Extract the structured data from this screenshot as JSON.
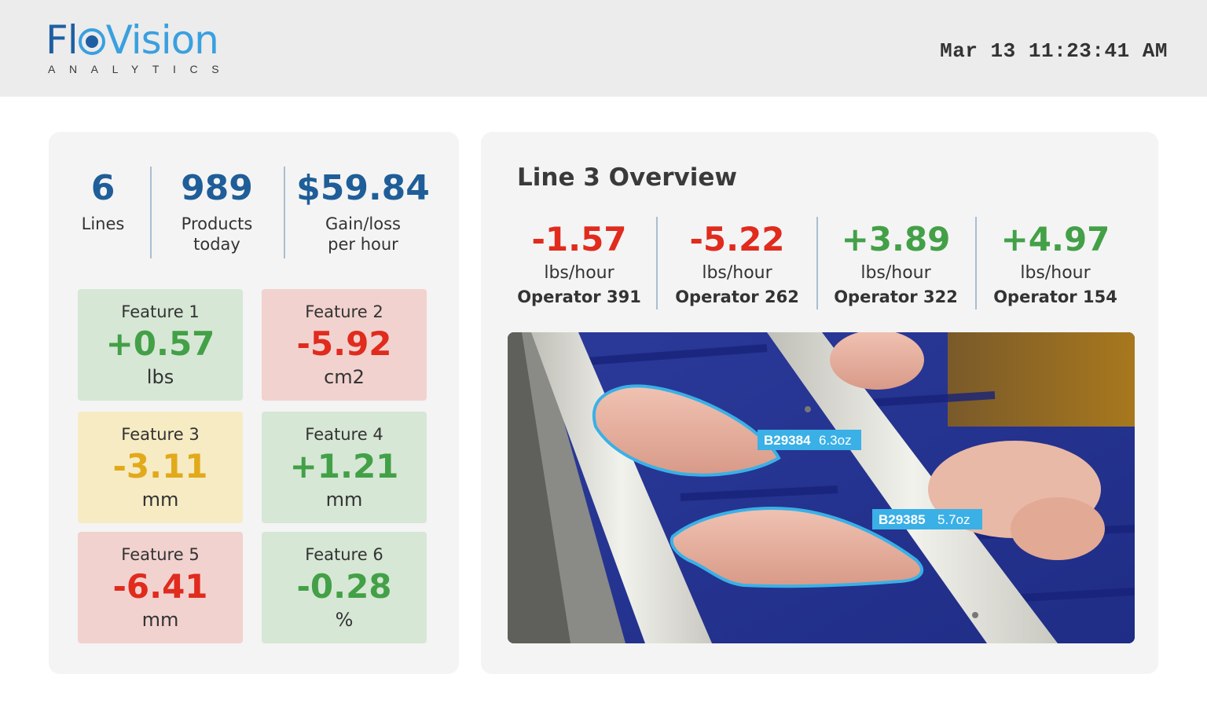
{
  "header": {
    "logo": {
      "word_part1": "Fl",
      "word_part2": "Vision",
      "sub": "ANALYTICS"
    },
    "datetime": "Mar 13 11:23:41 AM"
  },
  "summary": [
    {
      "value": "6",
      "label_line1": "Lines",
      "label_line2": ""
    },
    {
      "value": "989",
      "label_line1": "Products",
      "label_line2": "today"
    },
    {
      "value": "$59.84",
      "label_line1": "Gain/loss",
      "label_line2": "per hour"
    }
  ],
  "features": [
    {
      "name": "Feature 1",
      "value": "+0.57",
      "unit": "lbs",
      "status": "green",
      "status_color": "#43a047"
    },
    {
      "name": "Feature 2",
      "value": "-5.92",
      "unit": "cm2",
      "status": "red",
      "status_color": "#e02b1d"
    },
    {
      "name": "Feature 3",
      "value": "-3.11",
      "unit": "mm",
      "status": "yellow",
      "status_color": "#e2a91a"
    },
    {
      "name": "Feature 4",
      "value": "+1.21",
      "unit": "mm",
      "status": "green",
      "status_color": "#43a047"
    },
    {
      "name": "Feature 5",
      "value": "-6.41",
      "unit": "mm",
      "status": "red",
      "status_color": "#e02b1d"
    },
    {
      "name": "Feature 6",
      "value": "-0.28",
      "unit": "%",
      "status": "green",
      "status_color": "#43a047"
    }
  ],
  "line_overview": {
    "title": "Line 3 Overview",
    "operators": [
      {
        "value": "-1.57",
        "unit": "lbs/hour",
        "name": "Operator 391",
        "status": "red"
      },
      {
        "value": "-5.22",
        "unit": "lbs/hour",
        "name": "Operator 262",
        "status": "red"
      },
      {
        "value": "+3.89",
        "unit": "lbs/hour",
        "name": "Operator 322",
        "status": "green"
      },
      {
        "value": "+4.97",
        "unit": "lbs/hour",
        "name": "Operator 154",
        "status": "green"
      }
    ],
    "detections": [
      {
        "id": "B29384",
        "weight": "6.3oz"
      },
      {
        "id": "B29385",
        "weight": "5.7oz"
      }
    ]
  },
  "colors": {
    "brand_dark": "#1e5fa3",
    "brand_light": "#3aa0df",
    "positive": "#43a047",
    "negative": "#e02b1d",
    "warning": "#e2a91a",
    "detection_outline": "#3ab0e6"
  }
}
